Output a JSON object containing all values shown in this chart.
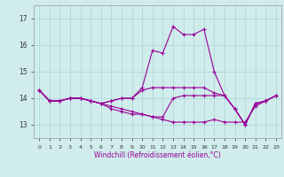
{
  "x": [
    0,
    1,
    2,
    3,
    4,
    5,
    6,
    7,
    8,
    9,
    10,
    11,
    12,
    13,
    14,
    15,
    16,
    17,
    18,
    19,
    20,
    21,
    22,
    23
  ],
  "lines": [
    [
      14.3,
      13.9,
      13.9,
      14.0,
      14.0,
      13.9,
      13.8,
      13.9,
      14.0,
      14.0,
      14.4,
      15.8,
      15.7,
      16.7,
      16.4,
      16.4,
      16.6,
      15.0,
      14.1,
      13.6,
      13.0,
      13.8,
      13.9,
      14.1
    ],
    [
      14.3,
      13.9,
      13.9,
      14.0,
      14.0,
      13.9,
      13.8,
      13.7,
      13.6,
      13.5,
      13.4,
      13.3,
      13.2,
      13.1,
      13.1,
      13.1,
      13.1,
      13.2,
      13.1,
      13.1,
      13.1,
      13.7,
      13.9,
      14.1
    ],
    [
      14.3,
      13.9,
      13.9,
      14.0,
      14.0,
      13.9,
      13.8,
      13.6,
      13.5,
      13.4,
      13.4,
      13.3,
      13.3,
      14.0,
      14.1,
      14.1,
      14.1,
      14.1,
      14.1,
      13.6,
      13.0,
      13.8,
      13.9,
      14.1
    ],
    [
      14.3,
      13.9,
      13.9,
      14.0,
      14.0,
      13.9,
      13.8,
      13.9,
      14.0,
      14.0,
      14.3,
      14.4,
      14.4,
      14.4,
      14.4,
      14.4,
      14.4,
      14.2,
      14.1,
      13.6,
      13.0,
      13.8,
      13.9,
      14.1
    ]
  ],
  "color": "#990099",
  "bg_color": "#d0ecec",
  "grid_color": "#b0d8d8",
  "xlabel": "Windchill (Refroidissement éolien,°C)",
  "ylabel_ticks": [
    13,
    14,
    15,
    16,
    17
  ],
  "xticks": [
    0,
    1,
    2,
    3,
    4,
    5,
    6,
    7,
    8,
    9,
    10,
    11,
    12,
    13,
    14,
    15,
    16,
    17,
    18,
    19,
    20,
    21,
    22,
    23
  ],
  "ylim": [
    12.5,
    17.5
  ],
  "xlim": [
    -0.5,
    23.5
  ],
  "marker": "+",
  "markersize": 3,
  "linewidth": 0.8
}
